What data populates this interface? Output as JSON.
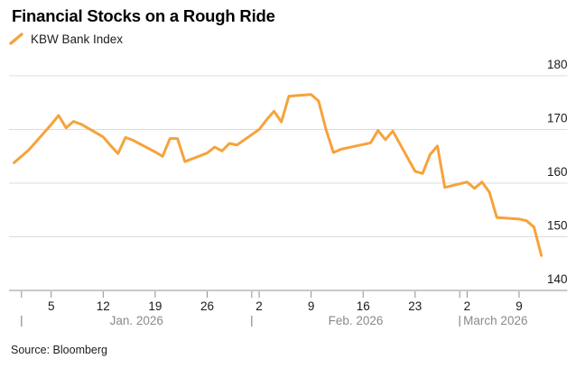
{
  "footer": {
    "source": "Source: Bloomberg"
  },
  "chart_data": {
    "type": "line",
    "title": "Financial Stocks on a Rough Ride",
    "legend_entries": [
      "KBW Bank Index"
    ],
    "legend_position": "top-left",
    "line_color": "#F7A23B",
    "grid_color": "#DCDCDC",
    "axis_color": "#C9C9C9",
    "tick_color": "#8F8F8F",
    "label_color": "#1A1A1A",
    "month_label_color": "#8A8A8A",
    "grid": true,
    "y_axis_side": "right",
    "ylim": [
      140,
      180
    ],
    "y_ticks": [
      "140",
      "150",
      "160",
      "170",
      "180"
    ],
    "x_axis": {
      "week_ticks": [
        {
          "date": "2026-01-05",
          "label": "5"
        },
        {
          "date": "2026-01-12",
          "label": "12"
        },
        {
          "date": "2026-01-19",
          "label": "19"
        },
        {
          "date": "2026-01-26",
          "label": "26"
        },
        {
          "date": "2026-02-02",
          "label": "2"
        },
        {
          "date": "2026-02-09",
          "label": "9"
        },
        {
          "date": "2026-02-16",
          "label": "16"
        },
        {
          "date": "2026-02-23",
          "label": "23"
        },
        {
          "date": "2026-03-02",
          "label": "2"
        },
        {
          "date": "2026-03-09",
          "label": "9"
        }
      ],
      "months": [
        {
          "label": "Jan. 2026",
          "start": "2026-01-01",
          "end": "2026-02-01",
          "label_align": "center"
        },
        {
          "label": "Feb. 2026",
          "start": "2026-02-01",
          "end": "2026-03-01",
          "label_align": "center"
        },
        {
          "label": "March 2026",
          "start": "2026-03-01",
          "end": "2026-03-13",
          "label_align": "left"
        }
      ]
    },
    "series": [
      {
        "name": "KBW Bank Index",
        "points": [
          {
            "date": "2025-12-31",
            "value": 163.8
          },
          {
            "date": "2026-01-02",
            "value": 166.2
          },
          {
            "date": "2026-01-05",
            "value": 170.9
          },
          {
            "date": "2026-01-06",
            "value": 172.6
          },
          {
            "date": "2026-01-07",
            "value": 170.3
          },
          {
            "date": "2026-01-08",
            "value": 171.5
          },
          {
            "date": "2026-01-09",
            "value": 171.0
          },
          {
            "date": "2026-01-12",
            "value": 168.6
          },
          {
            "date": "2026-01-13",
            "value": 167.0
          },
          {
            "date": "2026-01-14",
            "value": 165.5
          },
          {
            "date": "2026-01-15",
            "value": 168.5
          },
          {
            "date": "2026-01-16",
            "value": 168.0
          },
          {
            "date": "2026-01-19",
            "value": 165.8
          },
          {
            "date": "2026-01-20",
            "value": 165.0
          },
          {
            "date": "2026-01-21",
            "value": 168.3
          },
          {
            "date": "2026-01-22",
            "value": 168.3
          },
          {
            "date": "2026-01-23",
            "value": 164.0
          },
          {
            "date": "2026-01-26",
            "value": 165.6
          },
          {
            "date": "2026-01-27",
            "value": 166.7
          },
          {
            "date": "2026-01-28",
            "value": 166.0
          },
          {
            "date": "2026-01-29",
            "value": 167.4
          },
          {
            "date": "2026-01-30",
            "value": 167.1
          },
          {
            "date": "2026-02-02",
            "value": 170.0
          },
          {
            "date": "2026-02-03",
            "value": 171.8
          },
          {
            "date": "2026-02-04",
            "value": 173.4
          },
          {
            "date": "2026-02-05",
            "value": 171.4
          },
          {
            "date": "2026-02-06",
            "value": 176.2
          },
          {
            "date": "2026-02-09",
            "value": 176.5
          },
          {
            "date": "2026-02-10",
            "value": 175.3
          },
          {
            "date": "2026-02-11",
            "value": 170.0
          },
          {
            "date": "2026-02-12",
            "value": 165.7
          },
          {
            "date": "2026-02-13",
            "value": 166.3
          },
          {
            "date": "2026-02-16",
            "value": 167.2
          },
          {
            "date": "2026-02-17",
            "value": 167.5
          },
          {
            "date": "2026-02-18",
            "value": 169.8
          },
          {
            "date": "2026-02-19",
            "value": 168.1
          },
          {
            "date": "2026-02-20",
            "value": 169.7
          },
          {
            "date": "2026-02-23",
            "value": 162.2
          },
          {
            "date": "2026-02-24",
            "value": 161.8
          },
          {
            "date": "2026-02-25",
            "value": 165.3
          },
          {
            "date": "2026-02-26",
            "value": 166.9
          },
          {
            "date": "2026-02-27",
            "value": 159.2
          },
          {
            "date": "2026-03-02",
            "value": 160.2
          },
          {
            "date": "2026-03-03",
            "value": 159.0
          },
          {
            "date": "2026-03-04",
            "value": 160.2
          },
          {
            "date": "2026-03-05",
            "value": 158.3
          },
          {
            "date": "2026-03-06",
            "value": 153.6
          },
          {
            "date": "2026-03-09",
            "value": 153.3
          },
          {
            "date": "2026-03-10",
            "value": 153.0
          },
          {
            "date": "2026-03-11",
            "value": 151.8
          },
          {
            "date": "2026-03-12",
            "value": 146.5
          }
        ]
      }
    ]
  }
}
